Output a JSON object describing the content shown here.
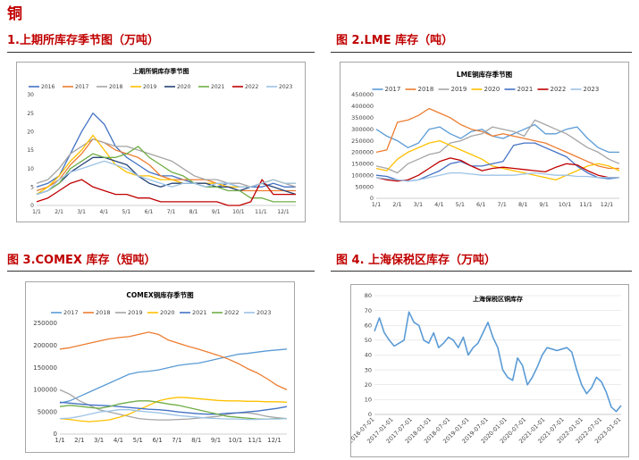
{
  "page": {
    "title": "铜"
  },
  "figures": [
    {
      "label": "1.上期所库存季节图（万吨）"
    },
    {
      "label": "图 2.LME 库存（吨）"
    },
    {
      "label": "图 3.COMEX 库存（短吨）"
    },
    {
      "label": "图 4.  上海保税区库存（万吨）"
    }
  ],
  "chart_data": [
    {
      "type": "line",
      "title": "上期所铜库存季节图",
      "legend_position": "top",
      "x_ticks": [
        "1/1",
        "2/1",
        "3/1",
        "4/1",
        "5/1",
        "6/1",
        "7/1",
        "8/1",
        "9/1",
        "10/1",
        "11/1",
        "12/1"
      ],
      "ylim": [
        0,
        30
      ],
      "y_ticks": [
        0,
        5,
        10,
        15,
        20,
        25,
        30
      ],
      "series": [
        {
          "name": "2016",
          "color": "#4472c4",
          "values": [
            5,
            6,
            8,
            14,
            20,
            25,
            22,
            16,
            13,
            11,
            9,
            8,
            8,
            7,
            6,
            5,
            5,
            6,
            5,
            5,
            5,
            6,
            5,
            5
          ]
        },
        {
          "name": "2017",
          "color": "#ed7d31",
          "values": [
            4,
            5,
            7,
            11,
            14,
            18,
            17,
            15,
            14,
            13,
            11,
            8,
            7,
            7,
            7,
            7,
            6,
            5,
            4,
            4,
            4,
            4,
            4,
            4
          ]
        },
        {
          "name": "2018",
          "color": "#a5a5a5",
          "values": [
            6,
            7,
            10,
            14,
            16,
            18,
            17,
            16,
            16,
            15,
            14,
            13,
            12,
            10,
            8,
            7,
            7,
            6,
            6,
            5,
            6,
            7,
            6,
            5
          ]
        },
        {
          "name": "2019",
          "color": "#ffc000",
          "values": [
            3,
            5,
            8,
            12,
            15,
            19,
            15,
            11,
            9,
            8,
            8,
            7,
            7,
            6,
            6,
            6,
            6,
            5,
            5,
            5,
            6,
            7,
            6,
            6
          ]
        },
        {
          "name": "2020",
          "color": "#264478",
          "values": [
            3,
            4,
            6,
            9,
            11,
            13,
            13,
            12,
            11,
            8,
            6,
            5,
            6,
            6,
            6,
            6,
            5,
            5,
            4,
            5,
            6,
            5,
            4,
            3
          ]
        },
        {
          "name": "2021",
          "color": "#70ad47",
          "values": [
            3,
            4,
            6,
            10,
            12,
            14,
            13,
            13,
            14,
            16,
            13,
            11,
            9,
            8,
            6,
            5,
            5,
            4,
            4,
            2,
            2,
            1,
            1,
            1
          ]
        },
        {
          "name": "2022",
          "color": "#c00000",
          "values": [
            1,
            2,
            4,
            6,
            7,
            5,
            4,
            3,
            3,
            2,
            2,
            1,
            1,
            1,
            1,
            1,
            1,
            0,
            0,
            1,
            7,
            3,
            3,
            3
          ]
        },
        {
          "name": "2023",
          "color": "#9dc3e6",
          "values": [
            3,
            4,
            7,
            9,
            10,
            11,
            12,
            11,
            10,
            8,
            7,
            6,
            5,
            6,
            6,
            5,
            6,
            6,
            5,
            5,
            6,
            7,
            6,
            6
          ]
        }
      ]
    },
    {
      "type": "line",
      "title": "LME铜库存季节图",
      "legend_position": "top",
      "x_ticks": [
        "1/1",
        "2/1",
        "3/1",
        "4/1",
        "5/1",
        "6/1",
        "7/1",
        "8/1",
        "9/1",
        "10/1",
        "11/1",
        "12/1"
      ],
      "ylim": [
        0,
        450000
      ],
      "y_ticks": [
        0,
        50000,
        100000,
        150000,
        200000,
        250000,
        300000,
        350000,
        400000,
        450000
      ],
      "series": [
        {
          "name": "2017",
          "color": "#5b9bd5",
          "values": [
            300000,
            270000,
            250000,
            220000,
            240000,
            300000,
            310000,
            280000,
            260000,
            290000,
            300000,
            270000,
            260000,
            280000,
            300000,
            320000,
            280000,
            280000,
            300000,
            310000,
            260000,
            220000,
            200000,
            200000
          ]
        },
        {
          "name": "2018",
          "color": "#ed7d31",
          "values": [
            200000,
            210000,
            330000,
            340000,
            360000,
            390000,
            370000,
            350000,
            320000,
            300000,
            290000,
            270000,
            280000,
            270000,
            260000,
            250000,
            240000,
            220000,
            200000,
            180000,
            160000,
            140000,
            130000,
            130000
          ]
        },
        {
          "name": "2019",
          "color": "#a5a5a5",
          "values": [
            140000,
            130000,
            110000,
            150000,
            170000,
            190000,
            200000,
            240000,
            250000,
            270000,
            280000,
            310000,
            300000,
            290000,
            270000,
            340000,
            320000,
            300000,
            280000,
            250000,
            220000,
            200000,
            170000,
            150000
          ]
        },
        {
          "name": "2020",
          "color": "#ffc000",
          "values": [
            130000,
            120000,
            170000,
            200000,
            220000,
            240000,
            250000,
            230000,
            210000,
            190000,
            170000,
            140000,
            130000,
            120000,
            110000,
            100000,
            90000,
            80000,
            100000,
            120000,
            140000,
            150000,
            140000,
            120000
          ]
        },
        {
          "name": "2021",
          "color": "#4472c4",
          "values": [
            100000,
            95000,
            80000,
            75000,
            80000,
            100000,
            120000,
            150000,
            160000,
            140000,
            140000,
            150000,
            160000,
            230000,
            240000,
            240000,
            220000,
            200000,
            180000,
            140000,
            110000,
            90000,
            85000,
            90000
          ]
        },
        {
          "name": "2022",
          "color": "#c00000",
          "values": [
            90000,
            80000,
            75000,
            80000,
            100000,
            130000,
            160000,
            175000,
            165000,
            140000,
            120000,
            130000,
            135000,
            130000,
            125000,
            120000,
            115000,
            135000,
            150000,
            145000,
            120000,
            100000,
            90000,
            90000
          ]
        },
        {
          "name": "2023",
          "color": "#9dc3e6",
          "values": [
            90000,
            85000,
            80000,
            75000,
            80000,
            90000,
            100000,
            110000,
            110000,
            105000,
            100000,
            100000,
            100000,
            100000,
            105000,
            110000,
            105000,
            100000,
            100000,
            95000,
            95000,
            90000,
            90000,
            90000
          ]
        }
      ]
    },
    {
      "type": "line",
      "title": "COMEX铜库存季节图",
      "legend_position": "top",
      "x_ticks": [
        "1/1",
        "2/1",
        "3/1",
        "4/1",
        "5/1",
        "6/1",
        "7/1",
        "8/1",
        "9/1",
        "10/1",
        "11/1",
        "12/1"
      ],
      "ylim": [
        0,
        250000
      ],
      "y_ticks": [
        0,
        50000,
        100000,
        150000,
        200000,
        250000
      ],
      "series": [
        {
          "name": "2017",
          "color": "#5b9bd5",
          "values": [
            70000,
            75000,
            85000,
            95000,
            105000,
            115000,
            125000,
            135000,
            140000,
            142000,
            145000,
            150000,
            155000,
            158000,
            160000,
            165000,
            170000,
            175000,
            180000,
            182000,
            185000,
            188000,
            190000,
            192000
          ]
        },
        {
          "name": "2018",
          "color": "#ed7d31",
          "values": [
            192000,
            195000,
            200000,
            205000,
            210000,
            215000,
            218000,
            220000,
            225000,
            230000,
            225000,
            212000,
            205000,
            198000,
            192000,
            185000,
            178000,
            170000,
            160000,
            148000,
            138000,
            125000,
            110000,
            100000
          ]
        },
        {
          "name": "2019",
          "color": "#a5a5a5",
          "values": [
            100000,
            90000,
            75000,
            65000,
            55000,
            50000,
            45000,
            40000,
            35000,
            33000,
            32000,
            32000,
            33000,
            34000,
            36000,
            38000,
            40000,
            45000,
            48000,
            48000,
            45000,
            40000,
            37000,
            35000
          ]
        },
        {
          "name": "2020",
          "color": "#ffc000",
          "values": [
            35000,
            33000,
            30000,
            28000,
            30000,
            32000,
            38000,
            45000,
            55000,
            65000,
            75000,
            80000,
            83000,
            82000,
            80000,
            78000,
            76000,
            75000,
            75000,
            74000,
            74000,
            73000,
            73000,
            72000
          ]
        },
        {
          "name": "2021",
          "color": "#4472c4",
          "values": [
            72000,
            70000,
            68000,
            66000,
            65000,
            64000,
            62000,
            60000,
            58000,
            56000,
            55000,
            53000,
            50000,
            48000,
            46000,
            45000,
            45000,
            47000,
            48000,
            50000,
            52000,
            55000,
            58000,
            62000
          ]
        },
        {
          "name": "2022",
          "color": "#70ad47",
          "values": [
            62000,
            65000,
            63000,
            60000,
            58000,
            62000,
            68000,
            72000,
            75000,
            75000,
            72000,
            68000,
            65000,
            60000,
            55000,
            50000,
            45000,
            40000,
            38000,
            36000,
            34000,
            34000,
            35000,
            35000
          ]
        },
        {
          "name": "2023",
          "color": "#9dc3e6",
          "values": [
            35000,
            36000,
            40000,
            45000,
            50000,
            52000,
            55000,
            55000,
            52000,
            50000,
            48000,
            45000,
            42000,
            40000,
            38000,
            36000,
            35000,
            34000,
            34000,
            33000,
            33000,
            34000,
            34000,
            35000
          ]
        }
      ]
    },
    {
      "type": "line",
      "title": "上海保税区铜库存",
      "ylim": [
        0,
        80
      ],
      "y_ticks": [
        0,
        10,
        20,
        30,
        40,
        50,
        60,
        70,
        80
      ],
      "x_ticks": [
        "2016-07-01",
        "2017-01-01",
        "2017-07-01",
        "2018-01-01",
        "2018-07-01",
        "2019-01-01",
        "2019-07-01",
        "2020-01-01",
        "2020-07-01",
        "2021-01-01",
        "2021-07-01",
        "2022-01-01",
        "2022-07-01",
        "2023-01-01"
      ],
      "series": [
        {
          "name": "上海保税区铜库存",
          "color": "#5b9bd5",
          "values": [
            56,
            65,
            55,
            50,
            46,
            48,
            50,
            69,
            62,
            60,
            50,
            48,
            55,
            45,
            48,
            52,
            50,
            45,
            52,
            40,
            45,
            48,
            55,
            62,
            52,
            45,
            30,
            25,
            23,
            38,
            33,
            20,
            25,
            32,
            40,
            45,
            44,
            43,
            44,
            45,
            42,
            30,
            20,
            14,
            18,
            25,
            22,
            15,
            5,
            2,
            6
          ]
        }
      ]
    }
  ]
}
